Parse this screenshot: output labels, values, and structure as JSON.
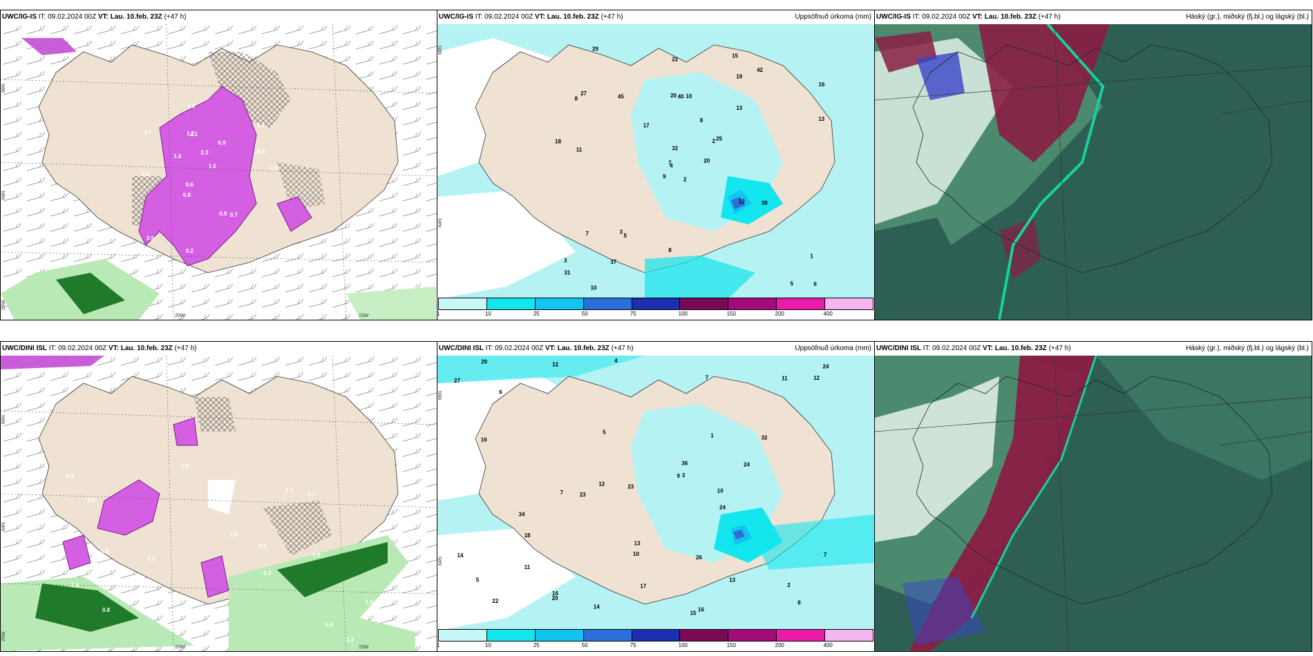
{
  "rows": [
    {
      "model": "UWC/IG-IS",
      "it_label": "IT:",
      "it_value": "09.02.2024 00Z",
      "vt_label": "VT:",
      "vt_value": "Lau. 10.feb. 23Z",
      "lead": "(+47 h)",
      "precip_title": "Uppsöfnuð úrkoma (mm)",
      "cloud_title": "Háský (gr.), miðský (fj.bl.) og lágský (bl.)",
      "lat_labels": [
        "66N",
        "64N",
        "25W"
      ],
      "lon_labels": [
        "20W",
        "15W"
      ],
      "precip_lat_labels": [
        "66N",
        "64N"
      ],
      "ptype_values": [
        "0.6",
        "0.5",
        "0.3",
        "0.8",
        "0.9",
        "1.1",
        "1.2",
        "2.3",
        "3.9",
        "1.6",
        "1.4",
        "2.6",
        "2.1",
        "1.5",
        "0.7",
        "1.7",
        "1.3",
        "0.9",
        "0.8",
        "0.5",
        "0.6",
        "0.2"
      ],
      "accum_values": [
        "2",
        "8",
        "4",
        "3",
        "2",
        "5",
        "15",
        "10",
        "19",
        "20",
        "29",
        "6",
        "11",
        "16",
        "9",
        "13",
        "10",
        "20",
        "8",
        "7",
        "17",
        "31",
        "37",
        "40",
        "25",
        "38",
        "27",
        "22",
        "18",
        "12",
        "13",
        "7",
        "8",
        "32",
        "45",
        "42",
        "3",
        "5",
        "1"
      ]
    },
    {
      "model": "UWC/DINI ISL",
      "it_label": "IT:",
      "it_value": "09.02.2024 00Z",
      "vt_label": "VT:",
      "vt_value": "Lau. 10.feb. 23Z",
      "lead": "(+47 h)",
      "precip_title": "Uppsöfnuð úrkoma (mm)",
      "cloud_title": "Háský (gr.), miðský (fj.bl.) og lágský (bl.)",
      "lat_labels": [
        "66N",
        "64N",
        "25W"
      ],
      "lon_labels": [
        "20W",
        "15W"
      ],
      "precip_lat_labels": [
        "66N",
        "64N"
      ],
      "ptype_values": [
        "1.4",
        "0.5",
        "0.3",
        "0.9",
        "1.0",
        "0.6",
        "0.8",
        "0.2",
        "0.7",
        "1.3",
        "1.1",
        "0.4",
        "0.5",
        "1.6",
        "0.6",
        "1.4",
        "0.9",
        "2.6",
        "0.3"
      ],
      "accum_values": [
        "14",
        "15",
        "16",
        "13",
        "12",
        "6",
        "7",
        "8",
        "4",
        "5",
        "11",
        "17",
        "12",
        "10",
        "7",
        "9",
        "16",
        "20",
        "23",
        "27",
        "26",
        "24",
        "36",
        "22",
        "32",
        "34",
        "14",
        "18",
        "20",
        "24",
        "23",
        "16",
        "13",
        "12",
        "11",
        "10",
        "7",
        "5",
        "1",
        "2",
        "3",
        "24"
      ]
    }
  ],
  "colorbar": {
    "labels": [
      "1",
      "10",
      "25",
      "50",
      "75",
      "100",
      "150",
      "200",
      "400"
    ],
    "colors": [
      "#c7f7f7",
      "#14e6ee",
      "#12c5f0",
      "#2b70d8",
      "#1b2fb0",
      "#7a0a55",
      "#a30a7a",
      "#ea1aaa",
      "#f3b6ef"
    ]
  },
  "colors": {
    "land": "#efe2d3",
    "precip_light": "#b5f2f4",
    "ptype_snow": "#d45fe2",
    "ptype_rain": "#1f7a2a",
    "cloud_dark": "#2e5f55",
    "cloud_mid": "#4b8a6e",
    "cloud_red": "#8a1d44"
  }
}
